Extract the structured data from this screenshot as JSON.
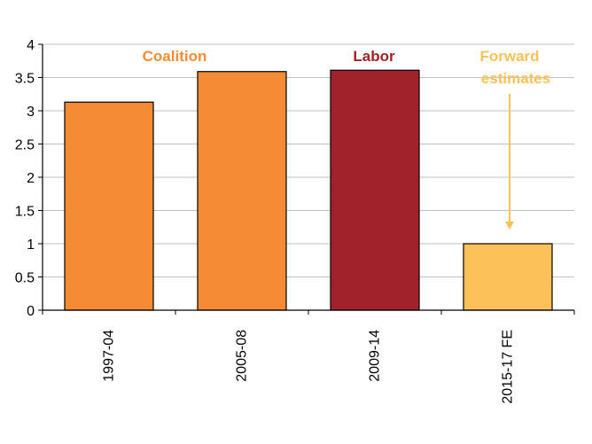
{
  "chart_data": {
    "type": "bar",
    "categories": [
      "1997-04",
      "2005-08",
      "2009-14",
      "2015-17 FE"
    ],
    "values": [
      3.13,
      3.59,
      3.61,
      1.0
    ],
    "bar_colors": [
      "#F58C35",
      "#F58C35",
      "#A12228",
      "#FDC159"
    ],
    "title": "",
    "xlabel": "",
    "ylabel": "",
    "ylim": [
      0,
      4
    ],
    "yticks": [
      "0",
      "0.5",
      "1",
      "1.5",
      "2",
      "2.5",
      "3",
      "3.5",
      "4"
    ],
    "grid": true,
    "annotations": {
      "coalition": "Coalition",
      "labor": "Labor",
      "forward_line1": "Forward",
      "forward_line2": "estimates"
    },
    "colors": {
      "coalition": "#F58C35",
      "labor": "#A12228",
      "forward": "#FDC159",
      "grid": "#C0C0C0"
    }
  }
}
